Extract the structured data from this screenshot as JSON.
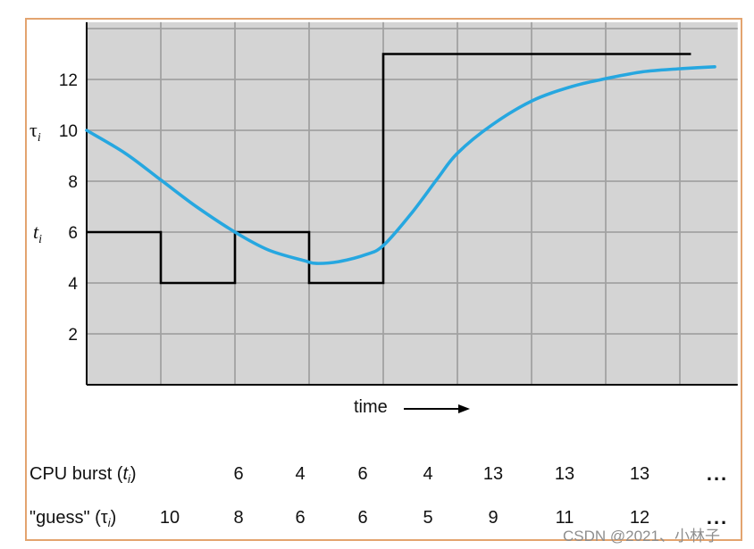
{
  "chart_data": {
    "type": "line",
    "xlabel": "time",
    "xlim": [
      0,
      8.78
    ],
    "ylim": [
      0,
      14.25
    ],
    "yticks": [
      2,
      4,
      6,
      8,
      10,
      12
    ],
    "grid": true,
    "y_annotations": [
      {
        "text": "τ",
        "sub": "i",
        "y": 10
      },
      {
        "text": "t",
        "sub": "i",
        "y": 6
      }
    ],
    "series": [
      {
        "kind": "step",
        "color": "#000000",
        "segments": [
          {
            "x0": 0,
            "x1": 1,
            "y": 6
          },
          {
            "x0": 1,
            "x1": 2,
            "y": 4
          },
          {
            "x0": 2,
            "x1": 3,
            "y": 6
          },
          {
            "x0": 3,
            "x1": 4,
            "y": 4
          },
          {
            "x0": 4,
            "x1": 8.15,
            "y": 13
          }
        ]
      },
      {
        "kind": "smooth",
        "color": "#26a7e0",
        "x": [
          0,
          0.52,
          1,
          1.48,
          2,
          2.45,
          2.93,
          3.1,
          3.4,
          3.77,
          4,
          4.37,
          4.73,
          5,
          5.46,
          6,
          6.54,
          7,
          7.5,
          8,
          8.47
        ],
        "y": [
          10,
          9.1,
          8.05,
          7.0,
          6.0,
          5.3,
          4.88,
          4.77,
          4.84,
          5.12,
          5.47,
          6.7,
          8.1,
          9.1,
          10.2,
          11.15,
          11.72,
          12.03,
          12.3,
          12.42,
          12.5
        ]
      }
    ]
  },
  "table": {
    "rows": [
      {
        "label_pre": "CPU burst (",
        "symbol": "t",
        "sub": "i",
        "label_post": ")",
        "values": [
          null,
          6,
          4,
          6,
          4,
          13,
          13,
          13
        ],
        "more": "..."
      },
      {
        "label_pre": "\"guess\" (",
        "symbol": "τ",
        "sub": "i",
        "label_post": ")",
        "values": [
          10,
          8,
          6,
          6,
          5,
          9,
          11,
          12
        ],
        "more": "..."
      }
    ]
  },
  "watermark": "CSDN @2021、小林子",
  "colors": {
    "frame": "#e3a46f",
    "plot_bg": "#d4d4d4",
    "grid": "#a2a2a2",
    "axis": "#000000"
  }
}
